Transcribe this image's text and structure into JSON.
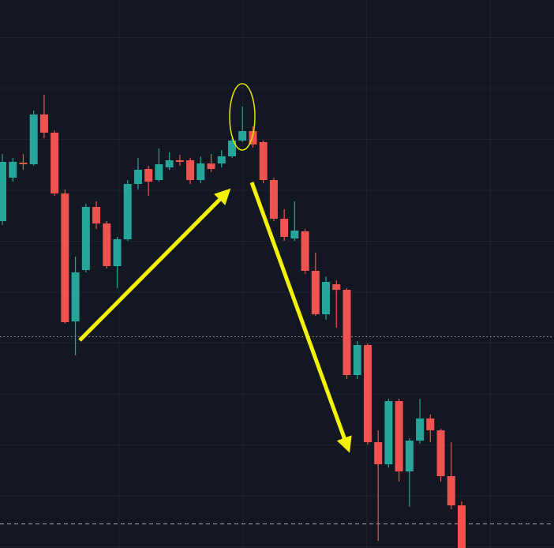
{
  "chart_data": {
    "type": "candlestick",
    "open": [
      414,
      469,
      488,
      486,
      549,
      526,
      449,
      287,
      352,
      432,
      411,
      357,
      391,
      461,
      480,
      466,
      482,
      491,
      491,
      466,
      487,
      487,
      496,
      516,
      528,
      514,
      466,
      417,
      392,
      401,
      351,
      296,
      334,
      327,
      219,
      257,
      134,
      106,
      186,
      97,
      136,
      164,
      149,
      91,
      54
    ],
    "high": [
      499,
      494,
      499,
      554,
      574,
      529,
      454,
      369,
      436,
      439,
      414,
      394,
      466,
      494,
      484,
      506,
      501,
      498,
      494,
      496,
      499,
      504,
      519,
      559,
      534,
      516,
      469,
      429,
      439,
      404,
      374,
      344,
      339,
      329,
      262,
      259,
      149,
      189,
      189,
      139,
      189,
      169,
      151,
      134,
      59
    ],
    "low": [
      409,
      464,
      479,
      484,
      519,
      446,
      284,
      244,
      349,
      404,
      354,
      329,
      389,
      454,
      446,
      464,
      479,
      484,
      461,
      462,
      476,
      482,
      494,
      514,
      507,
      462,
      414,
      389,
      389,
      347,
      294,
      289,
      279,
      214,
      214,
      131,
      9,
      102,
      84,
      52,
      132,
      134,
      84,
      49,
      0
    ],
    "close": [
      489,
      489,
      486,
      549,
      526,
      449,
      286,
      349,
      432,
      411,
      357,
      391,
      461,
      479,
      464,
      486,
      491,
      489,
      466,
      487,
      480,
      496,
      516,
      528,
      511,
      466,
      417,
      394,
      402,
      351,
      296,
      337,
      327,
      219,
      257,
      134,
      106,
      186,
      97,
      136,
      164,
      149,
      91,
      54,
      0
    ],
    "ylim": [
      0,
      694
    ],
    "up_color": "#26a69a",
    "down_color": "#ef5350",
    "price_lines": [
      268,
      31
    ]
  }
}
